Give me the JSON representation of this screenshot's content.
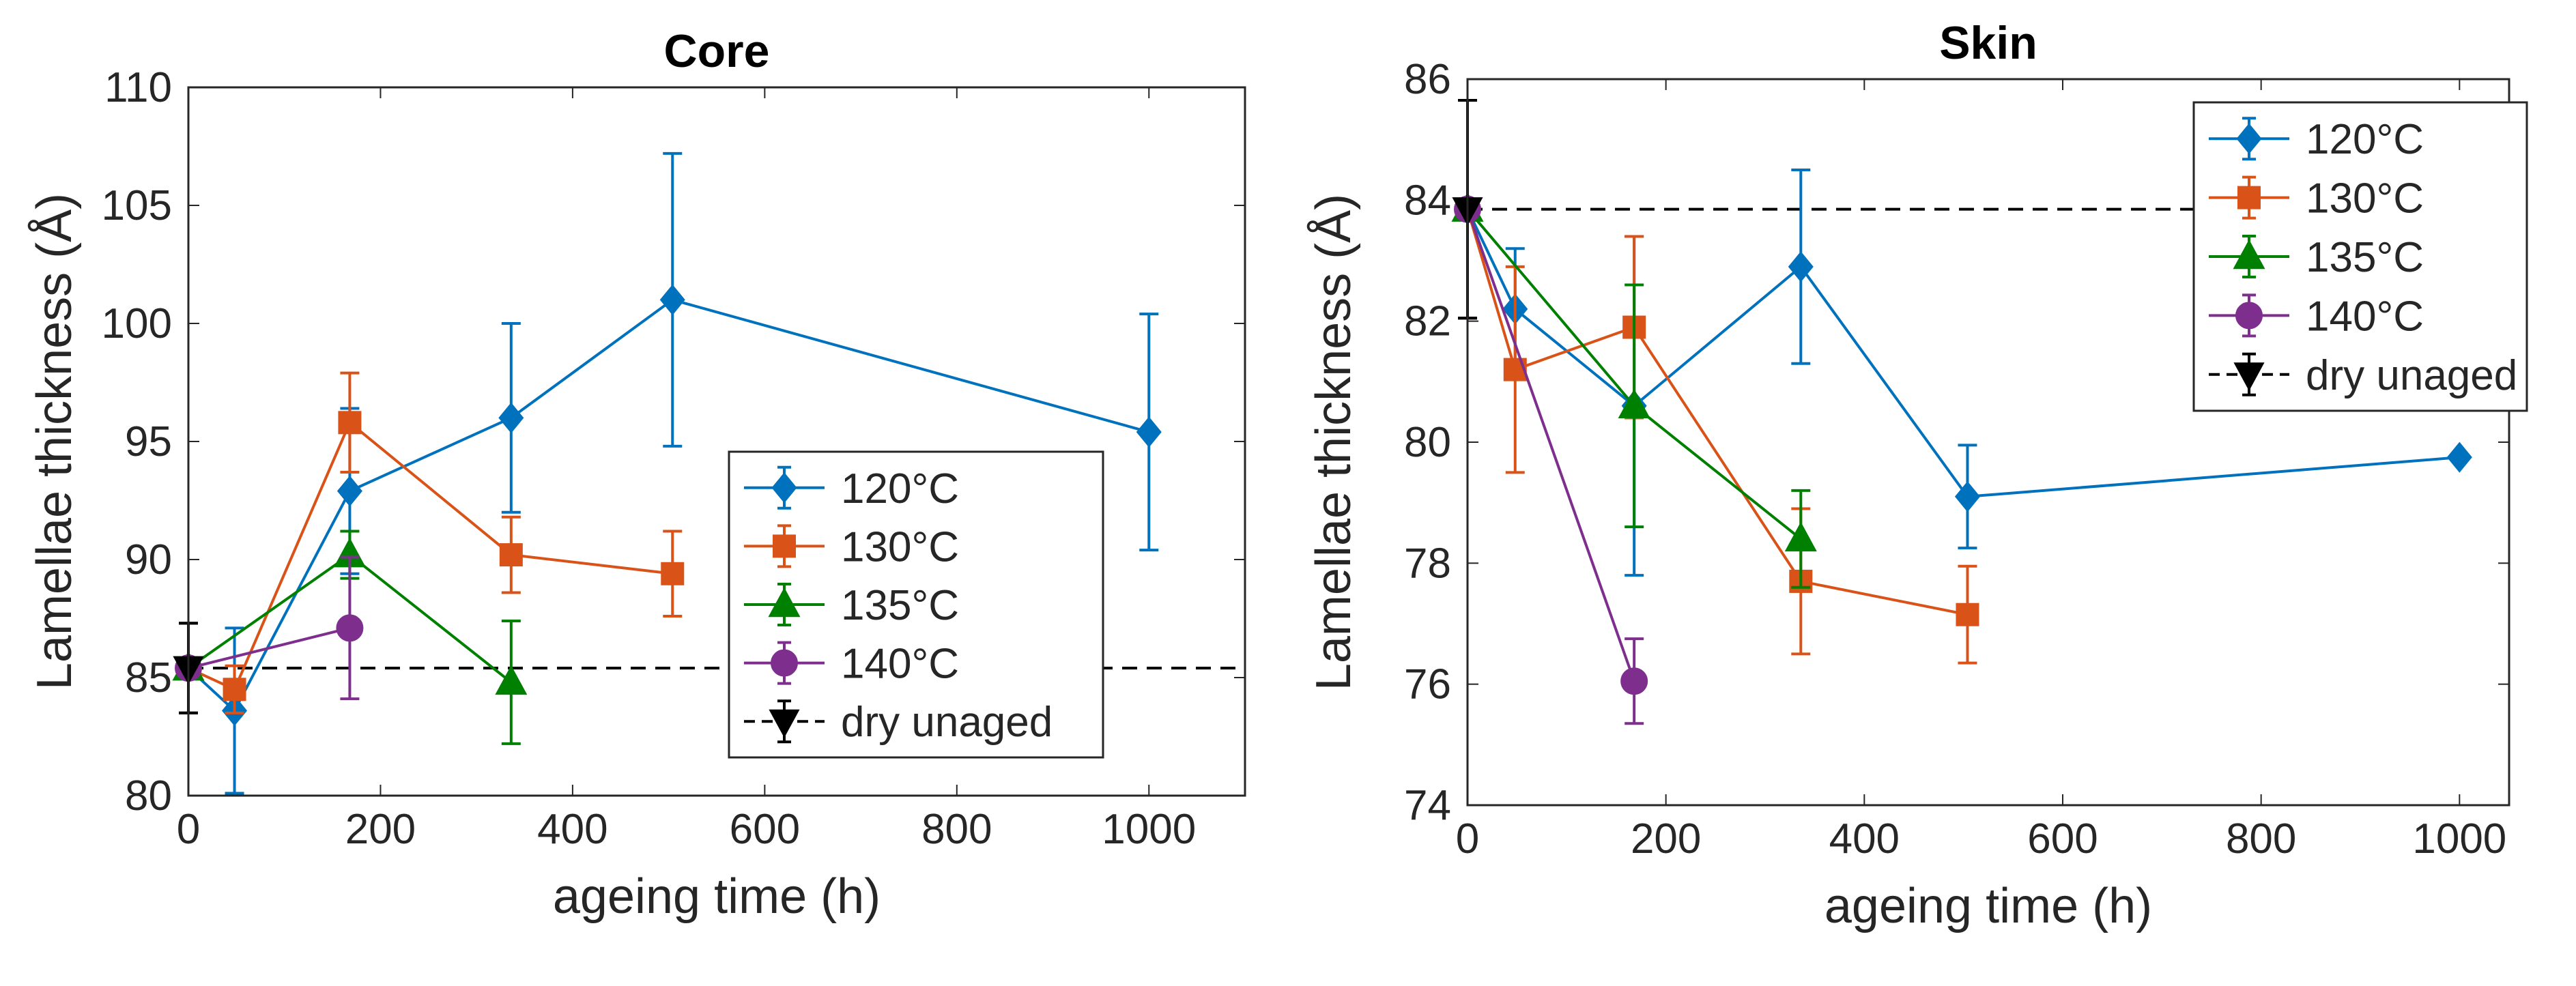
{
  "chart_data": [
    {
      "type": "line",
      "title": "Core",
      "xlabel": "ageing time (h)",
      "ylabel": "Lamellae thickness (Å)",
      "xlim": [
        0,
        1100
      ],
      "ylim": [
        80,
        110
      ],
      "xticks": [
        0,
        200,
        400,
        600,
        800,
        1000
      ],
      "yticks": [
        80,
        85,
        90,
        95,
        100,
        105,
        110
      ],
      "xtick_labels": [
        "0",
        "200",
        "400",
        "600",
        "800",
        "1000"
      ],
      "ytick_labels": [
        "80",
        "85",
        "90",
        "95",
        "100",
        "105",
        "110"
      ],
      "legend_position": "bottom-right",
      "reference_line": {
        "name": "dry unaged",
        "y": 85.4,
        "x": 0,
        "err": 1.9,
        "color": "#000000",
        "marker": "triangle-down"
      },
      "series": [
        {
          "name": "120°C",
          "color": "#0072BD",
          "marker": "diamond",
          "x": [
            0,
            48,
            168,
            336,
            504,
            1000
          ],
          "y": [
            85.4,
            83.6,
            92.9,
            96.0,
            101.0,
            95.4
          ],
          "err": [
            1.9,
            3.5,
            3.5,
            4.0,
            6.2,
            5.0
          ]
        },
        {
          "name": "130°C",
          "color": "#D95319",
          "marker": "square",
          "x": [
            0,
            48,
            168,
            336,
            504
          ],
          "y": [
            85.4,
            84.5,
            95.8,
            90.2,
            89.4
          ],
          "err": [
            1.9,
            1.0,
            2.1,
            1.6,
            1.8
          ]
        },
        {
          "name": "135°C",
          "color": "#008000",
          "marker": "triangle-up",
          "x": [
            0,
            168,
            336
          ],
          "y": [
            85.4,
            90.2,
            84.8
          ],
          "err": [
            1.9,
            1.0,
            2.6
          ]
        },
        {
          "name": "140°C",
          "color": "#7E2F8E",
          "marker": "circle",
          "x": [
            0,
            168
          ],
          "y": [
            85.4,
            87.1
          ],
          "err": [
            1.9,
            3.0
          ]
        }
      ]
    },
    {
      "type": "line",
      "title": "Skin",
      "xlabel": "ageing time (h)",
      "ylabel": "Lamellae thickness (Å)",
      "xlim": [
        0,
        1050
      ],
      "ylim": [
        74,
        86
      ],
      "xticks": [
        0,
        200,
        400,
        600,
        800,
        1000
      ],
      "yticks": [
        74,
        76,
        78,
        80,
        82,
        84,
        86
      ],
      "xtick_labels": [
        "0",
        "200",
        "400",
        "600",
        "800",
        "1000"
      ],
      "ytick_labels": [
        "74",
        "76",
        "78",
        "80",
        "82",
        "84",
        "86"
      ],
      "legend_position": "top-right",
      "reference_line": {
        "name": "dry unaged",
        "y": 83.85,
        "x": 0,
        "err": 1.8,
        "color": "#000000",
        "marker": "triangle-down"
      },
      "series": [
        {
          "name": "120°C",
          "color": "#0072BD",
          "marker": "diamond",
          "x": [
            0,
            48,
            168,
            336,
            504,
            1000
          ],
          "y": [
            83.85,
            82.2,
            80.6,
            82.9,
            79.1,
            79.75
          ],
          "err": [
            1.8,
            1.0,
            2.8,
            1.6,
            0.85,
            0
          ]
        },
        {
          "name": "130°C",
          "color": "#D95319",
          "marker": "square",
          "x": [
            0,
            48,
            168,
            336,
            504
          ],
          "y": [
            83.85,
            81.2,
            81.9,
            77.7,
            77.15
          ],
          "err": [
            1.8,
            1.7,
            1.5,
            1.2,
            0.8
          ]
        },
        {
          "name": "135°C",
          "color": "#008000",
          "marker": "triangle-up",
          "x": [
            0,
            168,
            336
          ],
          "y": [
            83.85,
            80.6,
            78.4
          ],
          "err": [
            1.8,
            2.0,
            0.8
          ]
        },
        {
          "name": "140°C",
          "color": "#7E2F8E",
          "marker": "circle",
          "x": [
            0,
            168
          ],
          "y": [
            83.85,
            76.05
          ],
          "err": [
            1.8,
            0.7
          ]
        }
      ]
    }
  ]
}
